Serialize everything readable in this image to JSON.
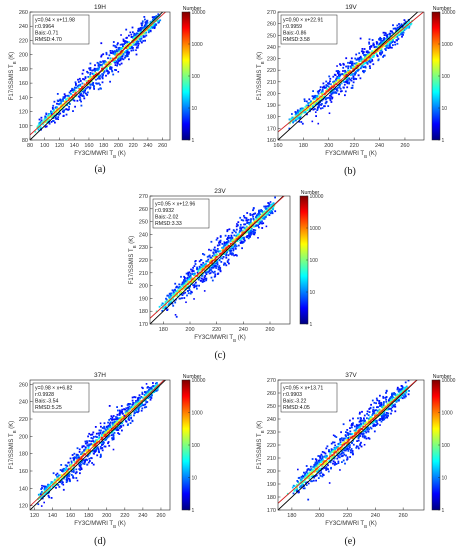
{
  "colormap": [
    "#00007f",
    "#0000ff",
    "#007fff",
    "#00ffff",
    "#7fff7f",
    "#ffff00",
    "#ff7f00",
    "#ff0000",
    "#7f0000"
  ],
  "line_colors": {
    "fit": "#d42020",
    "identity": "#000000"
  },
  "colorbar": {
    "title": "Number",
    "ticks": [
      "1",
      "10",
      "100",
      "1000",
      "10000"
    ]
  },
  "chart_data": [
    {
      "type": "heatmap",
      "panel_label": "(a)",
      "title": "19H",
      "xlabel": "FY3C/MWRI T",
      "ylabel": "F17/SSMIS T",
      "xlim": [
        80,
        270
      ],
      "ylim": [
        80,
        260
      ],
      "xticks": [
        80,
        100,
        120,
        140,
        160,
        180,
        200,
        220,
        240,
        260
      ],
      "yticks": [
        80,
        100,
        120,
        140,
        160,
        180,
        200,
        220,
        240,
        260
      ],
      "stats": [
        "y=0.94 × x+11.98",
        "r:0.9964",
        "Bais:-0.71",
        "RMSD:4.70"
      ],
      "fit": {
        "slope": 0.94,
        "intercept": 11.98
      },
      "r": 0.9964,
      "bias": -0.71,
      "rmsd": 4.7,
      "density_range": [
        90,
        255
      ],
      "spread": 10
    },
    {
      "type": "heatmap",
      "panel_label": "(b)",
      "title": "19V",
      "xlabel": "FY3C/MWRI T",
      "ylabel": "F17/SSMIS T",
      "xlim": [
        160,
        275
      ],
      "ylim": [
        160,
        270
      ],
      "xticks": [
        160,
        180,
        200,
        220,
        240,
        260
      ],
      "yticks": [
        160,
        170,
        180,
        190,
        200,
        210,
        220,
        230,
        240,
        250,
        260,
        270
      ],
      "stats": [
        "y=0.90 × x+22.91",
        "r:0.9959",
        "Bais:-0.86",
        "RMSD:3.58"
      ],
      "fit": {
        "slope": 0.9,
        "intercept": 22.91
      },
      "r": 0.9959,
      "bias": -0.86,
      "rmsd": 3.58,
      "density_range": [
        170,
        262
      ],
      "spread": 6
    },
    {
      "type": "heatmap",
      "panel_label": "(c)",
      "title": "23V",
      "xlabel": "FY3C/MWRI T",
      "ylabel": "F17/SSMIS T",
      "xlim": [
        170,
        275
      ],
      "ylim": [
        170,
        270
      ],
      "xticks": [
        180,
        200,
        220,
        240,
        260
      ],
      "yticks": [
        170,
        180,
        190,
        200,
        210,
        220,
        230,
        240,
        250,
        260,
        270
      ],
      "stats": [
        "y=0.95 × x+12.96",
        "r:0.9932",
        "Bais:-2.02",
        "RMSD:3.33"
      ],
      "fit": {
        "slope": 0.95,
        "intercept": 12.96
      },
      "r": 0.9932,
      "bias": -2.02,
      "rmsd": 3.33,
      "density_range": [
        180,
        262
      ],
      "spread": 6
    },
    {
      "type": "heatmap",
      "panel_label": "(d)",
      "title": "37H",
      "xlabel": "FY3C/MWRI T",
      "ylabel": "F17/SSMIS T",
      "xlim": [
        115,
        270
      ],
      "ylim": [
        115,
        265
      ],
      "xticks": [
        120,
        140,
        160,
        180,
        200,
        220,
        240,
        260
      ],
      "yticks": [
        120,
        140,
        160,
        180,
        200,
        220,
        240,
        260
      ],
      "stats": [
        "y=0.98 × x+6.82",
        "r:0.9928",
        "Bais:-3.54",
        "RMSD:5.25"
      ],
      "fit": {
        "slope": 0.98,
        "intercept": 6.82
      },
      "r": 0.9928,
      "bias": -3.54,
      "rmsd": 5.25,
      "density_range": [
        125,
        255
      ],
      "spread": 8
    },
    {
      "type": "heatmap",
      "panel_label": "(e)",
      "title": "37V",
      "xlabel": "FY3C/MWRI T",
      "ylabel": "F17/SSMIS T",
      "xlim": [
        170,
        275
      ],
      "ylim": [
        170,
        270
      ],
      "xticks": [
        180,
        200,
        220,
        240,
        260
      ],
      "yticks": [
        170,
        180,
        190,
        200,
        210,
        220,
        230,
        240,
        250,
        260,
        270
      ],
      "stats": [
        "y=0.95 × x+13.71",
        "r:0.9903",
        "Bais:-3.22",
        "RMSD:4.05"
      ],
      "fit": {
        "slope": 0.95,
        "intercept": 13.71
      },
      "r": 0.9903,
      "bias": -3.22,
      "rmsd": 4.05,
      "density_range": [
        182,
        262
      ],
      "spread": 6
    }
  ]
}
